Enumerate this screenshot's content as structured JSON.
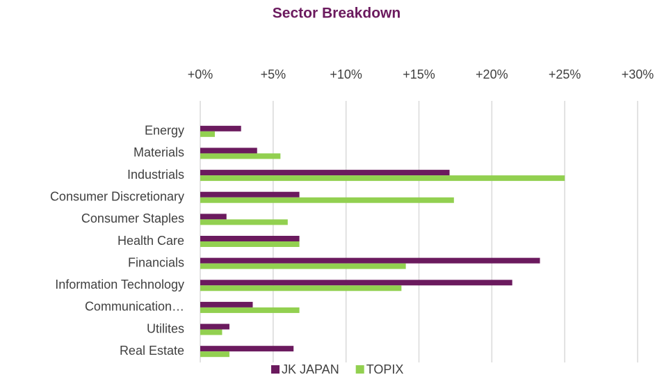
{
  "chart_data": {
    "type": "hbar",
    "title": "Sector Breakdown",
    "categories": [
      "Energy",
      "Materials",
      "Industrials",
      "Consumer Discretionary",
      "Consumer Staples",
      "Health Care",
      "Financials",
      "Information Technology",
      "Communication…",
      "Utilites",
      "Real Estate"
    ],
    "series": [
      {
        "name": "JK JAPAN",
        "color": "#6b1a5e",
        "values": [
          2.8,
          3.9,
          17.1,
          6.8,
          1.8,
          6.8,
          23.3,
          21.4,
          3.6,
          2.0,
          6.4
        ]
      },
      {
        "name": "TOPIX",
        "color": "#92d050",
        "values": [
          1.0,
          5.5,
          25.0,
          17.4,
          6.0,
          6.8,
          14.1,
          13.8,
          6.8,
          1.5,
          2.0
        ]
      }
    ],
    "xlim": [
      0,
      30
    ],
    "xticks": [
      {
        "value": 0,
        "label": "+0%"
      },
      {
        "value": 5,
        "label": "+5%"
      },
      {
        "value": 10,
        "label": "+10%"
      },
      {
        "value": 15,
        "label": "+15%"
      },
      {
        "value": 20,
        "label": "+20%"
      },
      {
        "value": 25,
        "label": "+25%"
      },
      {
        "value": 30,
        "label": "+30%"
      }
    ],
    "grid": true,
    "legend": "bottom"
  }
}
